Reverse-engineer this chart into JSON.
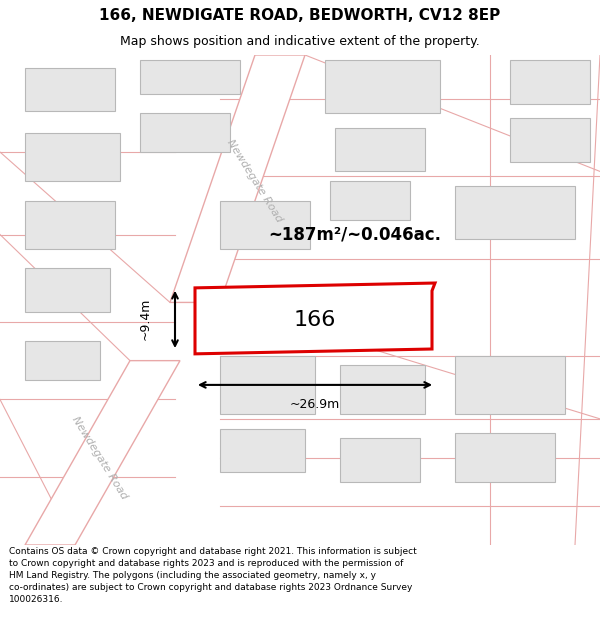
{
  "title": "166, NEWDIGATE ROAD, BEDWORTH, CV12 8EP",
  "subtitle": "Map shows position and indicative extent of the property.",
  "footer": "Contains OS data © Crown copyright and database right 2021. This information is subject\nto Crown copyright and database rights 2023 and is reproduced with the permission of\nHM Land Registry. The polygons (including the associated geometry, namely x, y\nco-ordinates) are subject to Crown copyright and database rights 2023 Ordnance Survey\n100026316.",
  "map_bg": "#f8f6f6",
  "road_color": "#e8a8a8",
  "road_label_color": "#b0b0b0",
  "building_fill": "#e6e6e6",
  "building_edge": "#b8b8b8",
  "highlight_fill": "#ffffff",
  "highlight_edge": "#dd0000",
  "area_label": "~187m²/~0.046ac.",
  "plot_label": "166",
  "width_label": "~26.9m",
  "height_label": "~9.4m",
  "road_label": "Newdegate Road",
  "title_fontsize": 11,
  "subtitle_fontsize": 9,
  "footer_fontsize": 6.5
}
